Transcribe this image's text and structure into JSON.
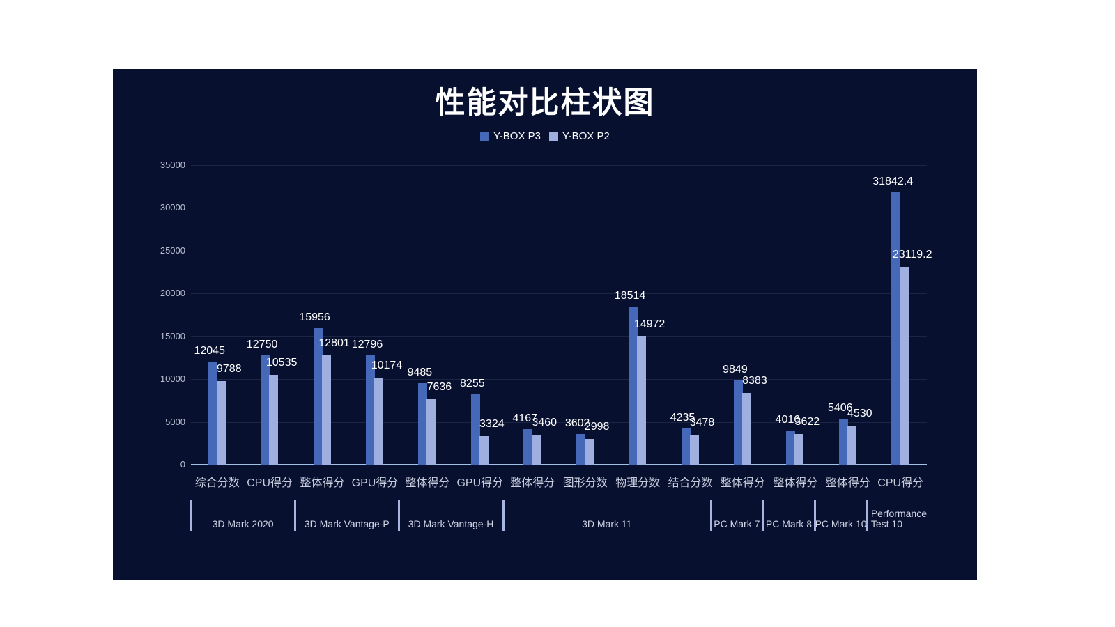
{
  "chart_data": {
    "type": "bar",
    "title": "性能对比柱状图",
    "legend_position": "top",
    "grid": true,
    "y_axis": {
      "min": 0,
      "max": 35000,
      "step": 5000,
      "tick_labels": [
        "0",
        "5000",
        "10000",
        "15000",
        "20000",
        "25000",
        "30000",
        "35000"
      ]
    },
    "categories": [
      "综合分数",
      "CPU得分",
      "整体得分",
      "GPU得分",
      "整体得分",
      "GPU得分",
      "整体得分",
      "图形分数",
      "物理分数",
      "结合分数",
      "整体得分",
      "整体得分",
      "整体得分",
      "CPU得分"
    ],
    "series": [
      {
        "name": "Y-BOX P3",
        "color": "#4568b8",
        "values": [
          12045,
          12750,
          15956,
          12796,
          9485,
          8255,
          4167,
          3602,
          18514,
          4235,
          9849,
          4016,
          5406,
          31842.4
        ]
      },
      {
        "name": "Y-BOX P2",
        "color": "#9fb0e0",
        "values": [
          9788,
          10535,
          12801,
          10174,
          7636,
          3324,
          3460,
          2998,
          14972,
          3478,
          8383,
          3622,
          4530,
          23119.2
        ]
      }
    ],
    "groups": [
      {
        "label": "3D Mark 2020",
        "span": 2
      },
      {
        "label": "3D Mark  Vantage-P",
        "span": 2
      },
      {
        "label": "3D Mark  Vantage-H",
        "span": 2
      },
      {
        "label": "3D Mark 11",
        "span": 4
      },
      {
        "label": "PC Mark 7",
        "span": 1
      },
      {
        "label": "PC Mark 8",
        "span": 1
      },
      {
        "label": "PC Mark 10",
        "span": 1
      },
      {
        "label": "Performance Test 10",
        "span": 1
      }
    ],
    "colors": {
      "panel_background": "#081030",
      "gridline": "#1c2444",
      "axis_line": "#a3c1e6",
      "tick_text": "#b9bfce",
      "category_text": "#c9cede",
      "group_text": "#ced4e4",
      "group_divider": "#a9b5df",
      "data_label": "#ffffff",
      "title_text": "#ffffff",
      "legend_text": "#ffffff"
    }
  }
}
